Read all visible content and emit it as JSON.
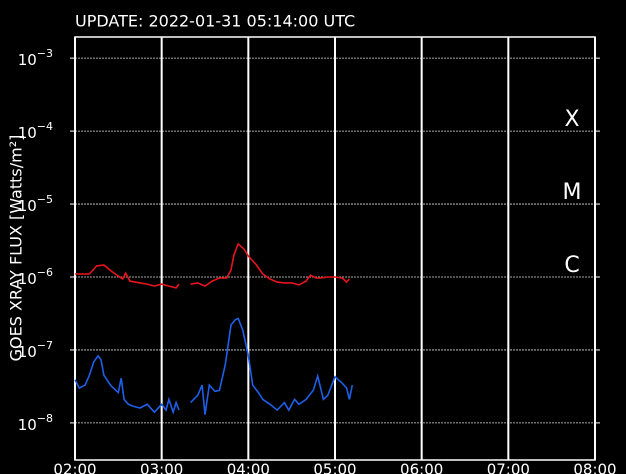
{
  "chart_data": {
    "type": "line",
    "title": "UPDATE: 2022-01-31 05:14:00 UTC",
    "y_label": "GOES XRAY FLUX [Watts/m²]",
    "log_y": true,
    "grid": true,
    "ylim": [
      3.1e-09,
      0.00195
    ],
    "yticks": [
      {
        "value": 0.001,
        "label": "10",
        "label_exponent": "−3"
      },
      {
        "value": 0.0001,
        "label": "10",
        "label_exponent": "−4"
      },
      {
        "value": 1e-05,
        "label": "10",
        "label_exponent": "−5"
      },
      {
        "value": 1e-06,
        "label": "10",
        "label_exponent": "−6"
      },
      {
        "value": 1e-07,
        "label": "10",
        "label_exponent": "−7"
      },
      {
        "value": 1e-08,
        "label": "10",
        "label_exponent": "−8"
      }
    ],
    "xlim": [
      "02:00",
      "08:00"
    ],
    "xticks": [
      "02:00",
      "03:00",
      "04:00",
      "05:00",
      "06:00",
      "07:00",
      "08:00"
    ],
    "annotations": [
      {
        "text": "X",
        "y": 0.0001
      },
      {
        "text": "M",
        "y": 1e-05
      },
      {
        "text": "C",
        "y": 1e-06
      }
    ],
    "series": [
      {
        "color": "#e8141c",
        "x": [
          "02:00",
          "02:10",
          "02:15",
          "02:20",
          "02:25",
          "02:30",
          "02:33",
          "02:35",
          "02:38",
          "02:45",
          "02:50",
          "02:55",
          "03:00",
          "03:05",
          "03:10",
          "03:12",
          "03:16",
          "03:20",
          "03:25",
          "03:30",
          "03:35",
          "03:40",
          "03:45",
          "03:48",
          "03:50",
          "03:53",
          "03:57",
          "04:00",
          "04:05",
          "04:10",
          "04:15",
          "04:20",
          "04:25",
          "04:30",
          "04:35",
          "04:40",
          "04:43",
          "04:47",
          "04:50",
          "04:55",
          "05:00",
          "05:05",
          "05:08",
          "05:10"
        ],
        "values": [
          1.1e-06,
          1.1e-06,
          1.42e-06,
          1.46e-06,
          1.21e-06,
          1.03e-06,
          9.4e-07,
          1.13e-06,
          8.8e-07,
          8.3e-07,
          8e-07,
          7.5e-07,
          8e-07,
          7.5e-07,
          7.1e-07,
          8e-07,
          null,
          8e-07,
          8.3e-07,
          7.5e-07,
          8.8e-07,
          9.7e-07,
          9.7e-07,
          1.25e-06,
          2e-06,
          2.83e-06,
          2.42e-06,
          1.94e-06,
          1.51e-06,
          1.1e-06,
          9.4e-07,
          8.5e-07,
          8.3e-07,
          8.3e-07,
          7.8e-07,
          8.8e-07,
          1.06e-06,
          9.7e-07,
          9.7e-07,
          1e-06,
          1e-06,
          9.7e-07,
          8.5e-07,
          9.4e-07
        ]
      },
      {
        "color": "#1f5fe8",
        "x": [
          "02:00",
          "02:03",
          "02:07",
          "02:10",
          "02:13",
          "02:16",
          "02:18",
          "02:20",
          "02:25",
          "02:30",
          "02:32",
          "02:34",
          "02:37",
          "02:40",
          "02:45",
          "02:50",
          "02:55",
          "03:00",
          "03:03",
          "03:05",
          "03:08",
          "03:10",
          "03:12",
          "03:16",
          "03:20",
          "03:25",
          "03:28",
          "03:30",
          "03:33",
          "03:37",
          "03:40",
          "03:44",
          "03:48",
          "03:51",
          "03:53",
          "03:56",
          "04:00",
          "04:03",
          "04:07",
          "04:10",
          "04:15",
          "04:20",
          "04:25",
          "04:28",
          "04:32",
          "04:35",
          "04:40",
          "04:45",
          "04:48",
          "04:52",
          "04:55",
          "05:00",
          "05:05",
          "05:08",
          "05:10",
          "05:12"
        ],
        "values": [
          3.9e-08,
          3e-08,
          3.3e-08,
          4.5e-08,
          6.9e-08,
          8.3e-08,
          7.3e-08,
          4.5e-08,
          3.2e-08,
          2.6e-08,
          4.1e-08,
          2.1e-08,
          1.8e-08,
          1.7e-08,
          1.6e-08,
          1.8e-08,
          1.4e-08,
          1.8e-08,
          1.5e-08,
          2.1e-08,
          1.4e-08,
          1.9e-08,
          1.5e-08,
          null,
          1.9e-08,
          2.4e-08,
          3.3e-08,
          1.3e-08,
          3.3e-08,
          2.7e-08,
          2.8e-08,
          6.2e-08,
          2.2e-07,
          2.6e-07,
          2.7e-07,
          1.9e-07,
          8.5e-08,
          3.3e-08,
          2.6e-08,
          2.1e-08,
          1.8e-08,
          1.5e-08,
          1.9e-08,
          1.5e-08,
          2.1e-08,
          1.8e-08,
          2.1e-08,
          2.8e-08,
          4.4e-08,
          2.1e-08,
          2.4e-08,
          4.3e-08,
          3.5e-08,
          3e-08,
          2.1e-08,
          3.3e-08
        ]
      }
    ]
  }
}
